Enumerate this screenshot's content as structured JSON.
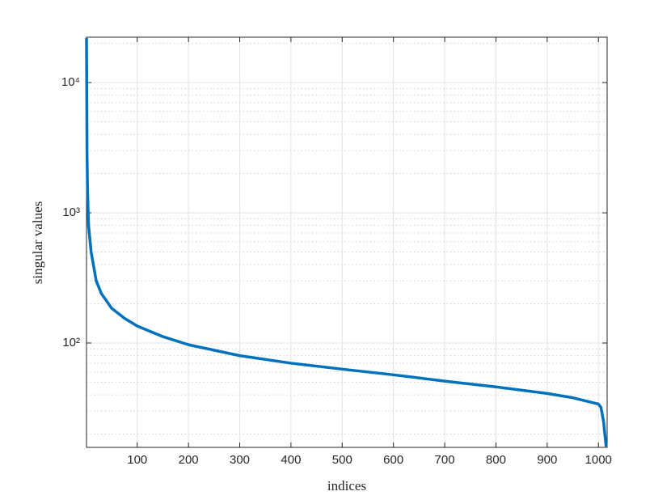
{
  "chart_data": {
    "type": "line",
    "xlabel": "indices",
    "ylabel": "singular values",
    "log_y": true,
    "grid": true,
    "x": [
      1,
      2,
      3,
      5,
      10,
      20,
      30,
      50,
      75,
      100,
      150,
      200,
      300,
      400,
      500,
      600,
      700,
      800,
      900,
      950,
      1000,
      1005,
      1010,
      1015
    ],
    "series": [
      {
        "name": "singular values",
        "color": "#0072bd",
        "values": [
          22000,
          3000,
          1500,
          800,
          500,
          300,
          240,
          185,
          155,
          135,
          112,
          97,
          80,
          70,
          63,
          57,
          51,
          46,
          41,
          38,
          34,
          32,
          25,
          16
        ]
      }
    ],
    "xlim": [
      1,
      1017
    ],
    "xticks": [
      100,
      200,
      300,
      400,
      500,
      600,
      700,
      800,
      900,
      1000
    ],
    "ylim": [
      15.8,
      22300
    ],
    "yticks": [
      {
        "value": 100,
        "label": "10²"
      },
      {
        "value": 1000,
        "label": "10³"
      },
      {
        "value": 10000,
        "label": "10⁴"
      }
    ],
    "yminorticks": [
      20,
      30,
      40,
      50,
      60,
      70,
      80,
      90,
      200,
      300,
      400,
      500,
      600,
      700,
      800,
      900,
      2000,
      3000,
      4000,
      5000,
      6000,
      7000,
      8000,
      9000,
      20000
    ]
  }
}
